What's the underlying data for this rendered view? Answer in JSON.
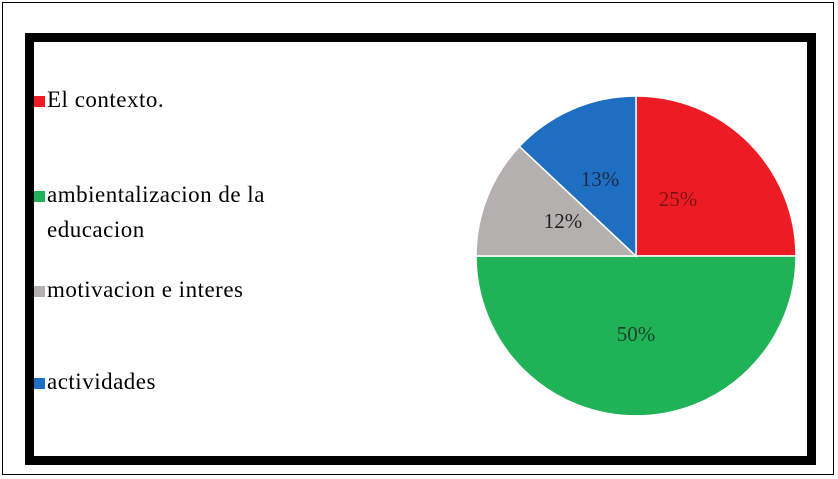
{
  "chart_data": {
    "type": "pie",
    "categories": [
      "El contexto.",
      "ambientalizacion de la educacion",
      "motivacion e interes",
      "actividades"
    ],
    "values": [
      25,
      50,
      12,
      13
    ],
    "labels": [
      "25%",
      "50%",
      "12%",
      "13%"
    ],
    "colors": [
      "#ed1c24",
      "#1fb257",
      "#b5b0b0",
      "#1e6fc1"
    ],
    "legend_lines": [
      [
        "El contexto."
      ],
      [
        "ambientalizacion de la",
        "educacion"
      ],
      [
        "motivacion e interes"
      ],
      [
        "actividades"
      ]
    ],
    "legend_position": "left",
    "start_angle_deg": 0,
    "direction": "clockwise"
  }
}
